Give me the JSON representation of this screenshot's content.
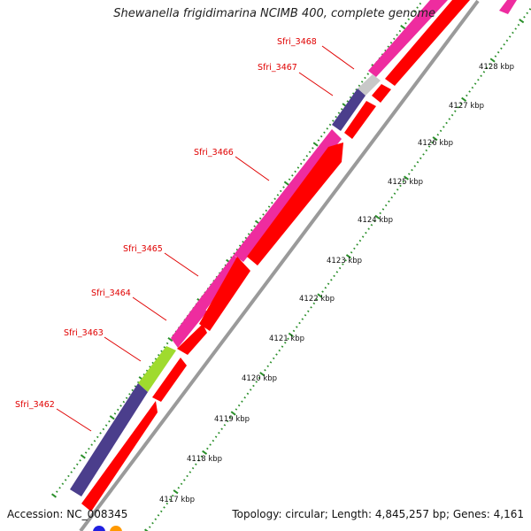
{
  "title": "Shewanella frigidimarina NCIMB 400, complete genome",
  "footer": {
    "accession": "Accession: NC_008345",
    "topology": "Topology: circular; Length: 4,845,257 bp; Genes: 4,161"
  },
  "colors": {
    "forward_cds": "#ee2c9f",
    "reverse_cds": "#ff0000",
    "dark_gene": "#4b3e8c",
    "gray_gene": "#c8c8c8",
    "green_gene": "#9fdb2e",
    "backbone": "#9a9a9a",
    "tick": "#2a8f2a",
    "label": "#e00000"
  },
  "gene_labels": [
    "Sfri_3468",
    "Sfri_3467",
    "Sfri_3466",
    "Sfri_3465",
    "Sfri_3464",
    "Sfri_3463",
    "Sfri_3462"
  ],
  "kbp_labels": [
    "4128 kbp",
    "4127 kbp",
    "4126 kbp",
    "4125 kbp",
    "4124 kbp",
    "4123 kbp",
    "4122 kbp",
    "4121 kbp",
    "4120 kbp",
    "4119 kbp",
    "4118 kbp",
    "4117 kbp"
  ]
}
